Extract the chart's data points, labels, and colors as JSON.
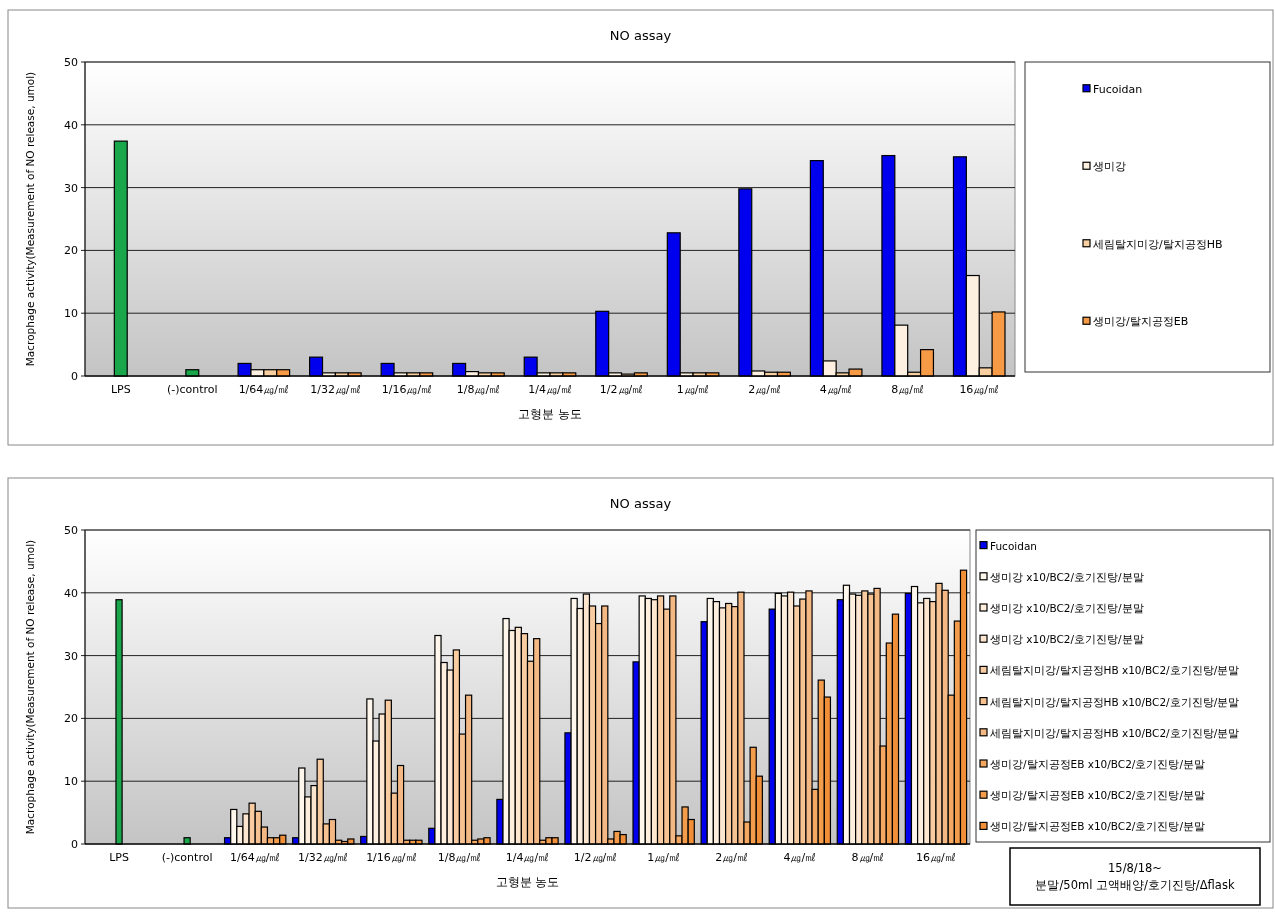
{
  "chart_data": [
    {
      "type": "bar",
      "title": "NO assay",
      "xlabel": "고형분 농도",
      "ylabel": "Macrophage activity(Measurement of NO release, umol)",
      "categories": [
        "LPS",
        "(-)control",
        "1/64㎍/㎖",
        "1/32㎍/㎖",
        "1/16㎍/㎖",
        "1/8㎍/㎖",
        "1/4㎍/㎖",
        "1/2㎍/㎖",
        "1㎍/㎖",
        "2㎍/㎖",
        "4㎍/㎖",
        "8㎍/㎖",
        "16㎍/㎖"
      ],
      "ylim": [
        0,
        50
      ],
      "yticks": [
        0,
        10,
        20,
        30,
        40,
        50
      ],
      "grid": "y",
      "legend": "right",
      "series": [
        {
          "color": "#1aa64a",
          "values": [
            37.4,
            1,
            null,
            null,
            null,
            null,
            null,
            null,
            null,
            null,
            null,
            null,
            null
          ]
        },
        {
          "name": "Fucoidan",
          "color": "#0000ee",
          "values": [
            null,
            null,
            2,
            3,
            2,
            2,
            3,
            10.3,
            22.8,
            29.8,
            34.3,
            35.1,
            34.9
          ]
        },
        {
          "name": "생미강",
          "color": "#fdf0e0",
          "values": [
            null,
            null,
            1,
            0.5,
            0.5,
            0.7,
            0.5,
            0.5,
            0.5,
            0.8,
            2.4,
            8.1,
            16
          ]
        },
        {
          "name": "세림탈지미강/탈지공정HB",
          "color": "#f8cfa0",
          "values": [
            null,
            null,
            1,
            0.5,
            0.5,
            0.5,
            0.5,
            0.3,
            0.5,
            0.6,
            0.5,
            0.6,
            1.3
          ]
        },
        {
          "name": "생미강/탈지공정EB",
          "color": "#f79a45",
          "values": [
            null,
            null,
            1,
            0.5,
            0.5,
            0.5,
            0.5,
            0.5,
            0.5,
            0.6,
            1.1,
            4.2,
            10.2
          ]
        }
      ]
    },
    {
      "type": "bar",
      "title": "NO assay",
      "xlabel": "고형분 농도",
      "ylabel": "Macrophage activity(Measurement of NO release, umol)",
      "categories": [
        "LPS",
        "(-)control",
        "1/64㎍/㎖",
        "1/32㎍/㎖",
        "1/16㎍/㎖",
        "1/8㎍/㎖",
        "1/4㎍/㎖",
        "1/2㎍/㎖",
        "1㎍/㎖",
        "2㎍/㎖",
        "4㎍/㎖",
        "8㎍/㎖",
        "16㎍/㎖"
      ],
      "ylim": [
        0,
        50
      ],
      "yticks": [
        0,
        10,
        20,
        30,
        40,
        50
      ],
      "grid": "y",
      "legend": "right",
      "annotations": [
        "15/8/18~",
        "분말/50ml 고액배양/호기진탕/Δflask"
      ],
      "series": [
        {
          "color": "#1aa64a",
          "values": [
            38.9,
            1.0,
            null,
            null,
            null,
            null,
            null,
            null,
            null,
            null,
            null,
            null,
            null
          ]
        },
        {
          "name": "Fucoidan",
          "color": "#0000ee",
          "values": [
            null,
            null,
            1.0,
            1.0,
            1.2,
            2.5,
            7.1,
            17.7,
            29.0,
            35.4,
            37.4,
            38.9,
            39.9
          ]
        },
        {
          "name": "생미강 x10/BC2/호기진탕/분말",
          "color": "#fff6ec",
          "values": [
            null,
            null,
            5.5,
            12.1,
            23.1,
            33.2,
            35.9,
            39.1,
            39.5,
            39.1,
            39.9,
            41.2,
            41.0
          ]
        },
        {
          "name": "생미강 x10/BC2/호기진탕/분말",
          "color": "#fdeedd",
          "values": [
            null,
            null,
            2.8,
            7.5,
            16.4,
            28.9,
            34.0,
            37.5,
            39.1,
            38.6,
            39.5,
            39.8,
            38.4
          ]
        },
        {
          "name": "생미강 x10/BC2/호기진탕/분말",
          "color": "#fce6d0",
          "values": [
            null,
            null,
            4.8,
            9.3,
            20.7,
            27.7,
            34.5,
            39.8,
            38.9,
            37.6,
            40.1,
            39.6,
            39.1
          ]
        },
        {
          "name": "세림탈지미강/탈지공정HB x10/BC2/호기진탕/분말",
          "color": "#f8cca0",
          "values": [
            null,
            null,
            6.5,
            13.5,
            22.9,
            30.9,
            33.5,
            37.9,
            39.5,
            38.3,
            37.9,
            40.3,
            38.6
          ]
        },
        {
          "name": "세림탈지미강/탈지공정HB x10/BC2/호기진탕/분말",
          "color": "#f6c291",
          "values": [
            null,
            null,
            5.2,
            3.2,
            8.1,
            17.5,
            29.1,
            35.1,
            37.4,
            37.8,
            39.0,
            39.8,
            41.5
          ]
        },
        {
          "name": "세림탈지미강/탈지공정HB x10/BC2/호기진탕/분말",
          "color": "#f4b884",
          "values": [
            null,
            null,
            2.7,
            3.9,
            12.5,
            23.7,
            32.7,
            37.9,
            39.5,
            40.1,
            40.3,
            40.7,
            40.4
          ]
        },
        {
          "name": "생미강/탈지공정EB x10/BC2/호기진탕/분말",
          "color": "#f5a862",
          "values": [
            null,
            null,
            1.0,
            0.6,
            0.6,
            0.6,
            0.6,
            0.8,
            1.3,
            3.5,
            8.7,
            15.6,
            23.7
          ]
        },
        {
          "name": "생미강/탈지공정EB x10/BC2/호기진탕/분말",
          "color": "#f39c4c",
          "values": [
            null,
            null,
            1.0,
            0.4,
            0.6,
            0.8,
            1.0,
            2.0,
            5.9,
            15.4,
            26.1,
            32.0,
            35.5
          ]
        },
        {
          "name": "생미강/탈지공정EB x10/BC2/호기진탕/분말",
          "color": "#f08f38",
          "values": [
            null,
            null,
            1.4,
            0.8,
            0.6,
            1.0,
            1.0,
            1.5,
            3.9,
            10.8,
            23.4,
            36.6,
            43.6
          ]
        }
      ]
    }
  ]
}
